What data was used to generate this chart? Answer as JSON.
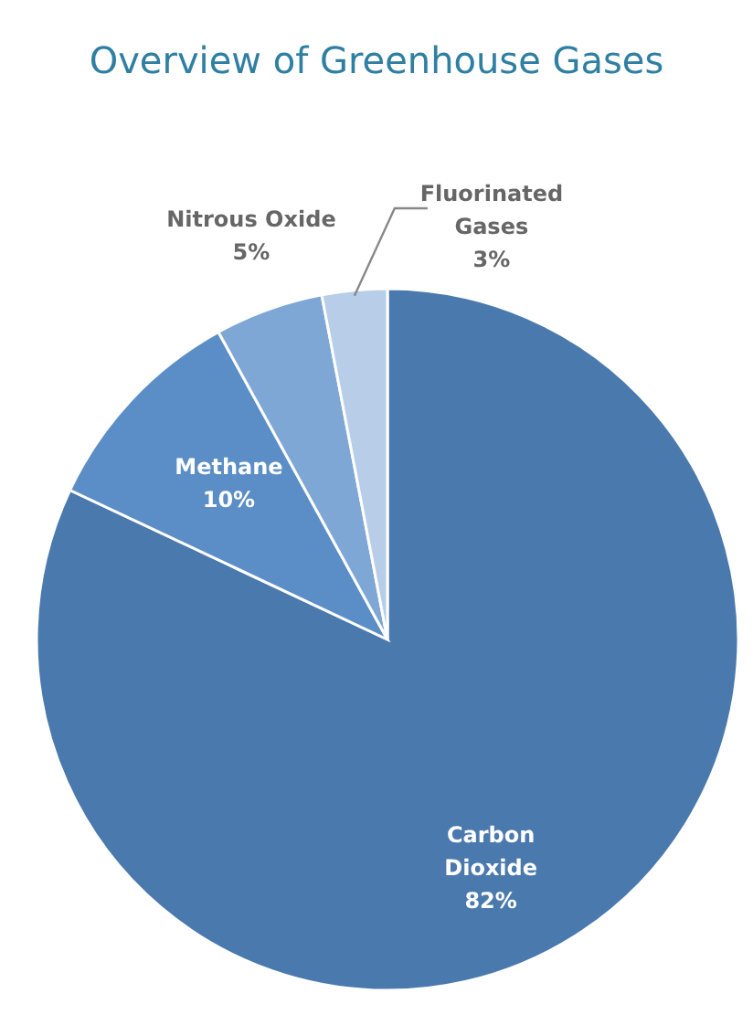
{
  "chart_data": {
    "type": "pie",
    "title": "Overview of Greenhouse Gases",
    "categories": [
      "Carbon Dioxide",
      "Methane",
      "Nitrous Oxide",
      "Fluorinated Gases"
    ],
    "values": [
      82,
      10,
      5,
      3
    ],
    "colors": [
      "#4a79ae",
      "#5b8ec6",
      "#7fa7d6",
      "#b7cde8"
    ],
    "value_labels": [
      "82%",
      "10%",
      "5%",
      "3%"
    ]
  }
}
